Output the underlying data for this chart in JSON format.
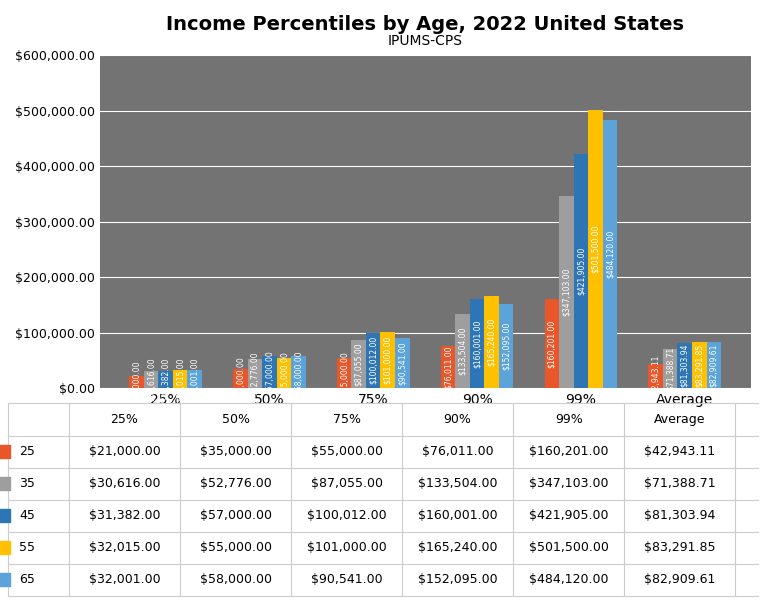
{
  "title": "Income Percentiles by Age, 2022 United States",
  "subtitle": "IPUMS-CPS",
  "categories": [
    "25%",
    "50%",
    "75%",
    "90%",
    "99%",
    "Average"
  ],
  "ages": [
    "25",
    "35",
    "45",
    "55",
    "65"
  ],
  "colors": {
    "25": "#E8562A",
    "35": "#9E9E9E",
    "45": "#2E75B6",
    "55": "#FFC000",
    "65": "#5BA3D9"
  },
  "data": {
    "25": [
      21000.0,
      35000.0,
      55000.0,
      76011.0,
      160201.0,
      42943.11
    ],
    "35": [
      30616.0,
      52776.0,
      87055.0,
      133504.0,
      347103.0,
      71388.71
    ],
    "45": [
      31382.0,
      57000.0,
      100012.0,
      160001.0,
      421905.0,
      81303.94
    ],
    "55": [
      32015.0,
      55000.0,
      101000.0,
      165240.0,
      501500.0,
      83291.85
    ],
    "65": [
      32001.0,
      58000.0,
      90541.0,
      152095.0,
      484120.0,
      82909.61
    ]
  },
  "ylim": [
    0,
    600000
  ],
  "yticks": [
    0,
    100000,
    200000,
    300000,
    400000,
    500000,
    600000
  ],
  "plot_background": "#737373",
  "figure_background": "#FFFFFF",
  "label_fontsize": 5.5,
  "bar_width": 0.14,
  "title_fontsize": 14,
  "subtitle_fontsize": 10,
  "ytick_fontsize": 9,
  "xtick_fontsize": 10
}
